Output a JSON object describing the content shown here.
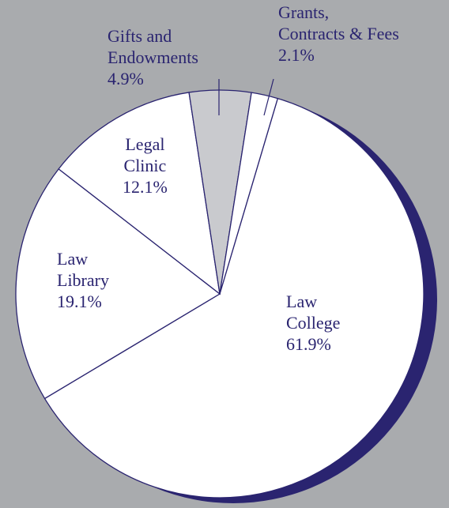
{
  "chart_data": {
    "type": "pie",
    "categories": [
      "Law\nCollege",
      "Law\nLibrary",
      "Legal\nClinic",
      "Gifts and\nEndowments",
      "Grants,\nContracts & Fees"
    ],
    "values": [
      61.9,
      19.1,
      12.1,
      4.9,
      2.1
    ],
    "value_labels": [
      "61.9%",
      "19.1%",
      "12.1%",
      "4.9%",
      "2.1%"
    ],
    "colors": [
      "#ffffff",
      "#ffffff",
      "#ffffff",
      "#c9cace",
      "#ffffff"
    ]
  }
}
